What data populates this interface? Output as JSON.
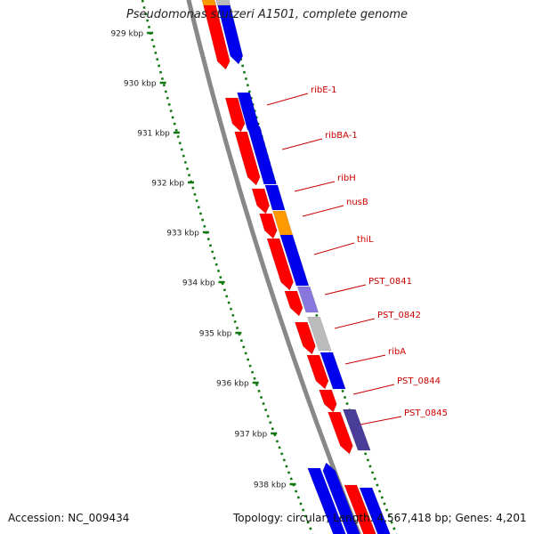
{
  "title": "Pseudomonas stutzeri A1501, complete genome",
  "footer": {
    "accession": "Accession: NC_009434",
    "summary": "Topology: circular; Length: 4,567,418 bp; Genes: 4,201"
  },
  "ticks": [
    "929 kbp",
    "930 kbp",
    "931 kbp",
    "932 kbp",
    "933 kbp",
    "934 kbp",
    "935 kbp",
    "936 kbp",
    "937 kbp",
    "938 kbp"
  ],
  "gene_labels": [
    "ribE-1",
    "ribBA-1",
    "ribH",
    "nusB",
    "thiL",
    "PST_0841",
    "PST_0842",
    "ribA",
    "PST_0844",
    "PST_0845"
  ],
  "colors": {
    "cds_red": "#ff0000",
    "cds_blue": "#0000ee",
    "orange": "#ff9900",
    "light_purple": "#8877dd",
    "dark_purple": "#4a3d99",
    "grey": "#bbbbbb",
    "tick_green": "#117711",
    "label_red": "#cc0000",
    "backbone": "#888888"
  }
}
